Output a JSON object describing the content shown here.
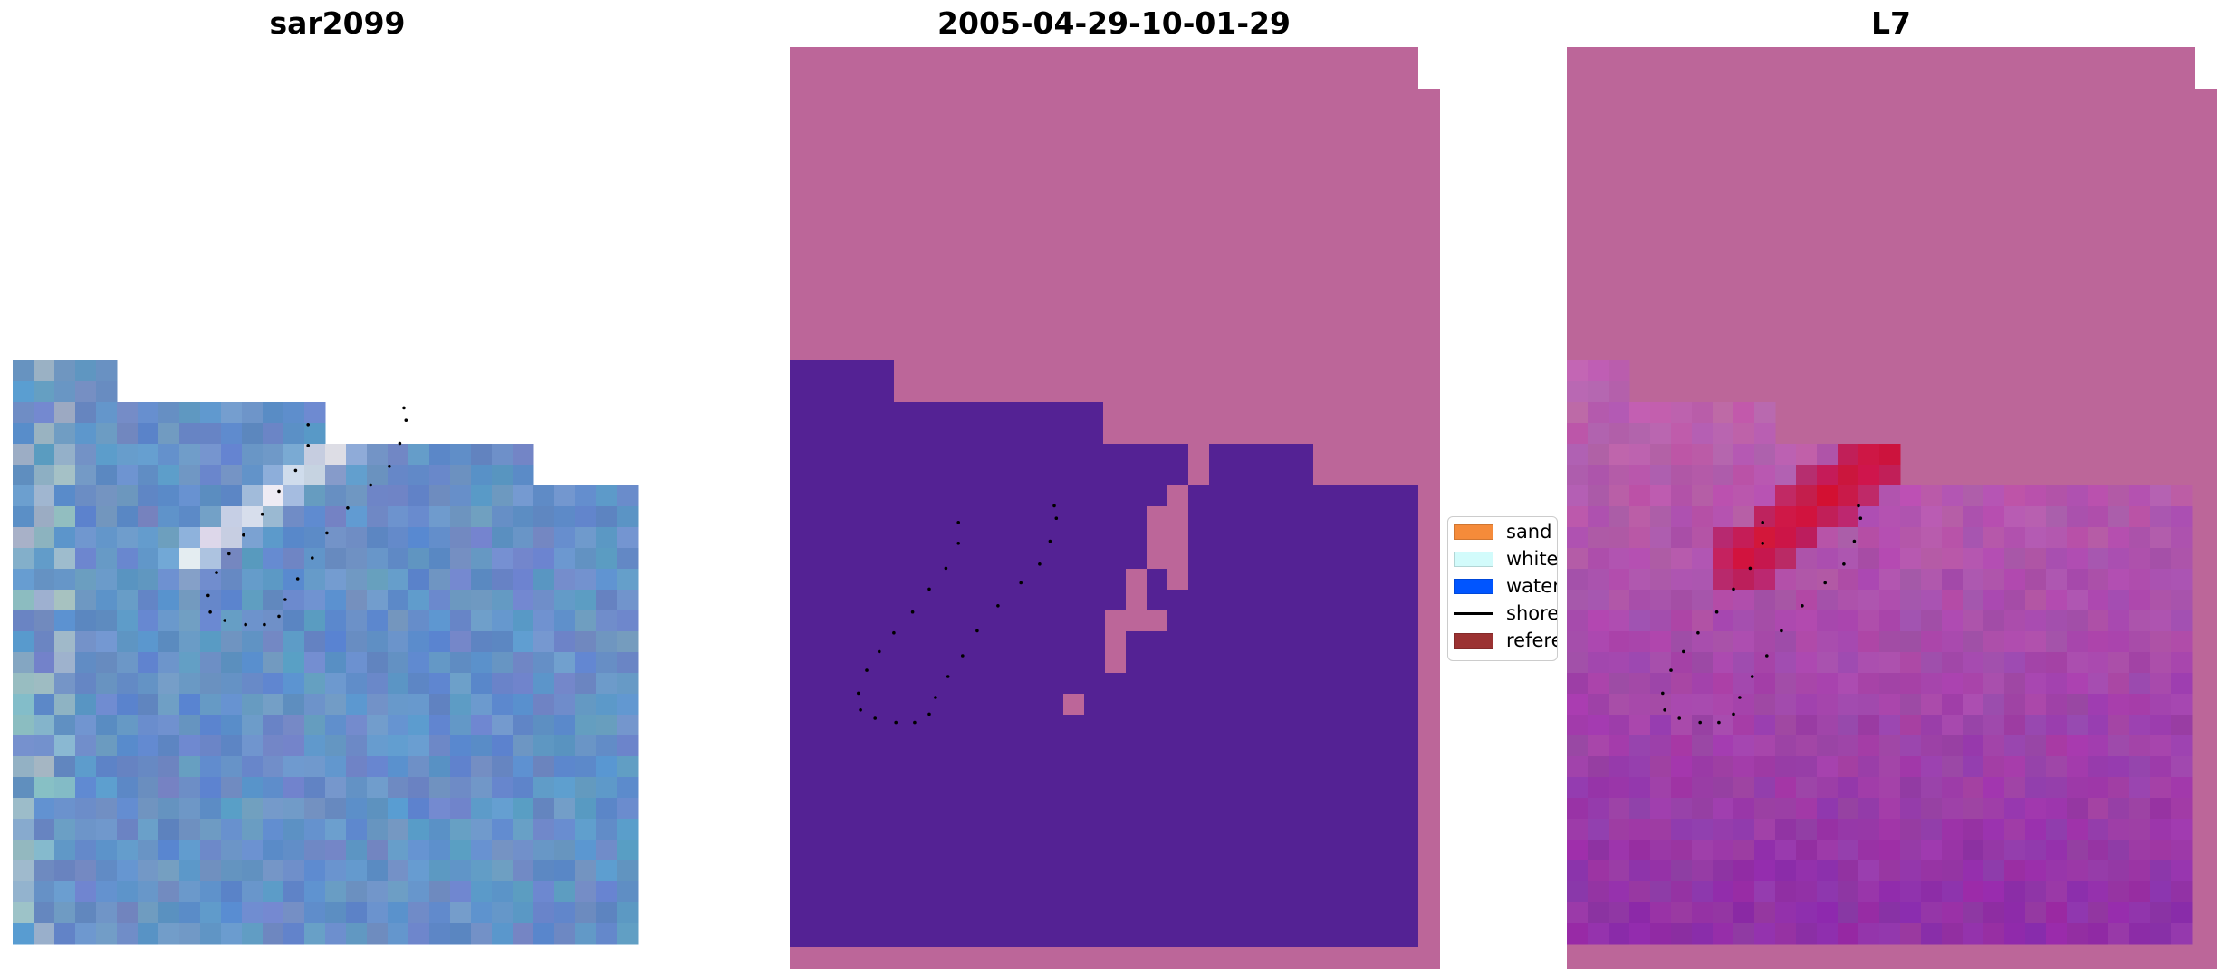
{
  "panels": [
    {
      "title": "sar2099",
      "kind": "rgb"
    },
    {
      "title": "2005-04-29-10-01-29",
      "kind": "classes"
    },
    {
      "title": "L7",
      "kind": "overlay"
    }
  ],
  "legend": {
    "items": [
      {
        "label": "sand",
        "color": "#f58b3a",
        "shape": "patch"
      },
      {
        "label": "whitewater",
        "color": "#d2fbfb",
        "shape": "patch"
      },
      {
        "label": "water",
        "color": "#0055ff",
        "shape": "patch"
      },
      {
        "label": "shoreline",
        "color": "#000000",
        "shape": "line"
      },
      {
        "label": "reference",
        "color": "#9b3232",
        "shape": "patch"
      }
    ]
  },
  "colors": {
    "background_class": "#bc6699",
    "water_class": "#542294",
    "overlay_high": "#c8002a",
    "overlay_low": "#8e2fa0",
    "rgb_base": "#5a88c4",
    "whitewater_streak": "#eef0f6"
  }
}
